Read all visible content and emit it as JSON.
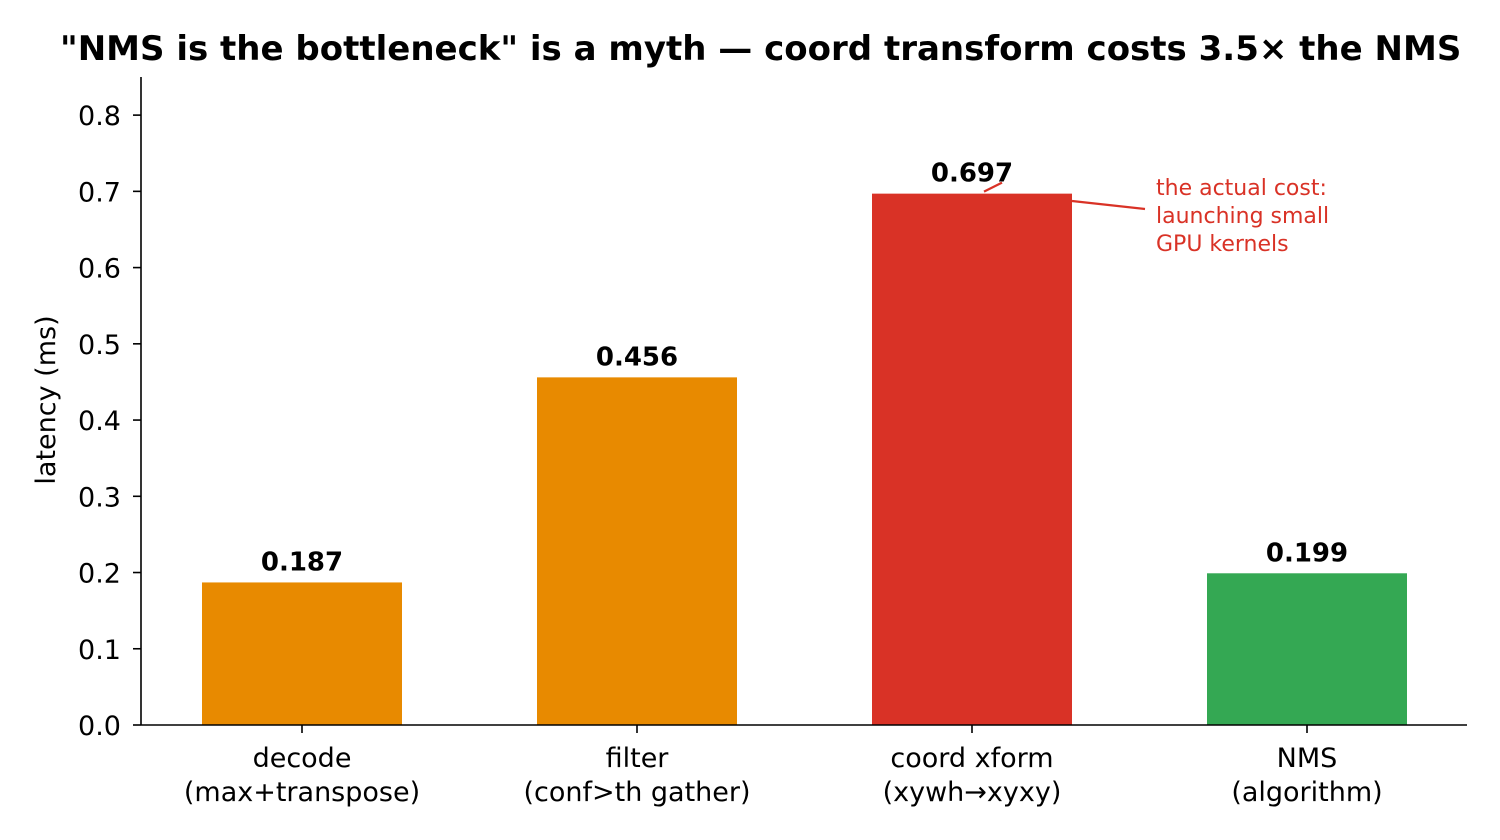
{
  "chart_data": {
    "type": "bar",
    "title": "\"NMS is the bottleneck\" is a myth — coord transform costs 3.5× the NMS",
    "xlabel": "",
    "ylabel": "latency (ms)",
    "ylim": [
      0,
      0.85
    ],
    "yticks": [
      "0.0",
      "0.1",
      "0.2",
      "0.3",
      "0.4",
      "0.5",
      "0.6",
      "0.7",
      "0.8"
    ],
    "grid": false,
    "categories": [
      [
        "decode",
        "(max+transpose)"
      ],
      [
        "filter",
        "(conf>th gather)"
      ],
      [
        "coord xform",
        "(xywh→xyxy)"
      ],
      [
        "NMS",
        "(algorithm)"
      ]
    ],
    "values": [
      0.187,
      0.456,
      0.697,
      0.199
    ],
    "value_labels": [
      "0.187",
      "0.456",
      "0.697",
      "0.199"
    ],
    "colors": [
      "#e88a00",
      "#e88a00",
      "#d93226",
      "#34a853"
    ],
    "annotation": {
      "target_index": 2,
      "lines": [
        "the actual cost:",
        "launching small",
        "GPU kernels"
      ],
      "color": "#d93226"
    }
  }
}
